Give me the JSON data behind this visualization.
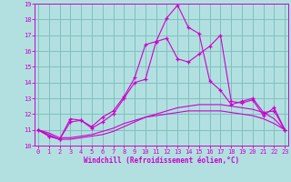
{
  "xlabel": "Windchill (Refroidissement éolien,°C)",
  "x_values": [
    0,
    1,
    2,
    3,
    4,
    5,
    6,
    7,
    8,
    9,
    10,
    11,
    12,
    13,
    14,
    15,
    16,
    17,
    18,
    19,
    20,
    21,
    22,
    23
  ],
  "line1": [
    11.0,
    10.6,
    10.4,
    11.7,
    11.6,
    11.1,
    11.5,
    12.0,
    13.0,
    14.0,
    14.2,
    16.6,
    18.1,
    18.9,
    17.5,
    17.1,
    14.1,
    13.5,
    12.6,
    12.8,
    13.0,
    12.1,
    12.2,
    11.0
  ],
  "line2": [
    11.0,
    10.6,
    10.4,
    11.5,
    11.6,
    11.2,
    11.8,
    12.2,
    13.1,
    14.3,
    16.4,
    16.6,
    16.8,
    15.5,
    15.3,
    15.8,
    16.3,
    17.0,
    12.8,
    12.7,
    12.9,
    11.9,
    12.4,
    11.0
  ],
  "line3": [
    11.0,
    10.7,
    10.4,
    10.4,
    10.5,
    10.6,
    10.7,
    10.9,
    11.2,
    11.5,
    11.8,
    12.0,
    12.2,
    12.4,
    12.5,
    12.6,
    12.6,
    12.6,
    12.5,
    12.4,
    12.3,
    12.1,
    11.7,
    11.0
  ],
  "line4": [
    11.0,
    10.8,
    10.5,
    10.5,
    10.6,
    10.7,
    10.9,
    11.1,
    11.4,
    11.6,
    11.8,
    11.9,
    12.0,
    12.1,
    12.2,
    12.2,
    12.2,
    12.2,
    12.1,
    12.0,
    11.9,
    11.7,
    11.4,
    11.0
  ],
  "line_color": "#cc00cc",
  "bg_color": "#b2e0e0",
  "grid_color": "#80c0c0",
  "ylim": [
    10,
    19
  ],
  "yticks": [
    10,
    11,
    12,
    13,
    14,
    15,
    16,
    17,
    18,
    19
  ],
  "xticks": [
    0,
    1,
    2,
    3,
    4,
    5,
    6,
    7,
    8,
    9,
    10,
    11,
    12,
    13,
    14,
    15,
    16,
    17,
    18,
    19,
    20,
    21,
    22,
    23
  ]
}
